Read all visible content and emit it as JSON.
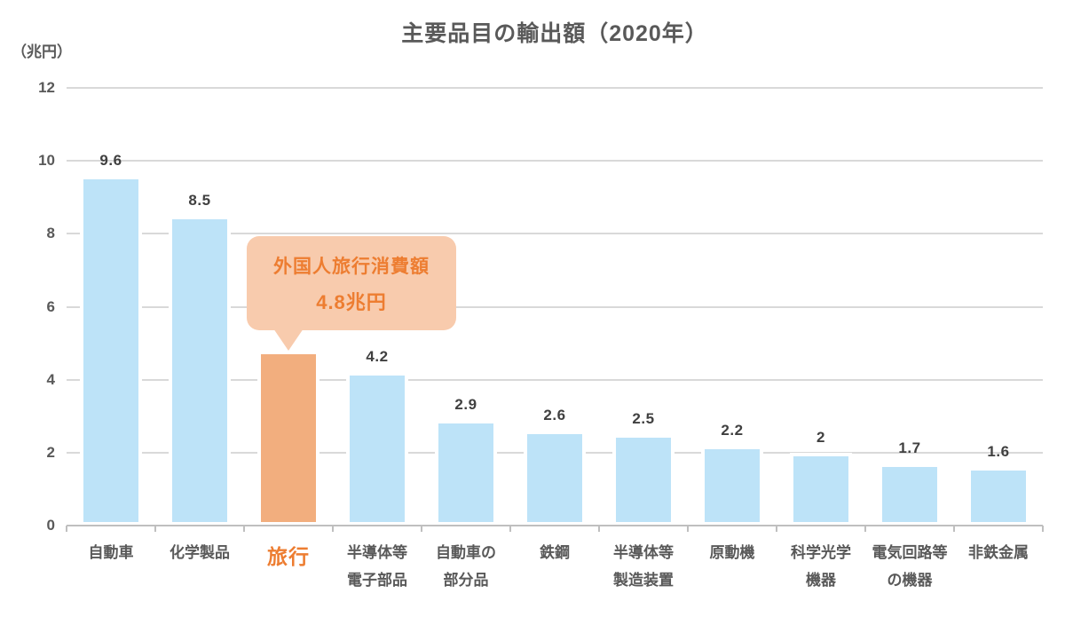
{
  "header": {
    "title": "主要品目の輸出額（2020年）",
    "unit_label": "（兆円）"
  },
  "chart_data": {
    "type": "bar",
    "title": "主要品目の輸出額（2020年）",
    "ylabel": "兆円",
    "ylim": [
      0,
      12
    ],
    "yticks": [
      0,
      2,
      4,
      6,
      8,
      10,
      12
    ],
    "grid": true,
    "legend": false,
    "categories": [
      "自動車",
      "化学製品",
      "旅行",
      "半導体等電子部品",
      "自動車の部分品",
      "鉄鋼",
      "半導体等製造装置",
      "原動機",
      "科学光学機器",
      "電気回路等の機器",
      "非鉄金属"
    ],
    "values": [
      9.6,
      8.5,
      4.8,
      4.2,
      2.9,
      2.6,
      2.5,
      2.2,
      2,
      1.7,
      1.6
    ],
    "bars": [
      {
        "label_lines": [
          "自動車"
        ],
        "value": 9.6,
        "value_label": "9.6",
        "highlight": false
      },
      {
        "label_lines": [
          "化学製品"
        ],
        "value": 8.5,
        "value_label": "8.5",
        "highlight": false
      },
      {
        "label_lines": [
          "旅行"
        ],
        "value": 4.8,
        "value_label": "",
        "highlight": true
      },
      {
        "label_lines": [
          "半導体等",
          "電子部品"
        ],
        "value": 4.2,
        "value_label": "4.2",
        "highlight": false
      },
      {
        "label_lines": [
          "自動車の",
          "部分品"
        ],
        "value": 2.9,
        "value_label": "2.9",
        "highlight": false
      },
      {
        "label_lines": [
          "鉄鋼"
        ],
        "value": 2.6,
        "value_label": "2.6",
        "highlight": false
      },
      {
        "label_lines": [
          "半導体等",
          "製造装置"
        ],
        "value": 2.5,
        "value_label": "2.5",
        "highlight": false
      },
      {
        "label_lines": [
          "原動機"
        ],
        "value": 2.2,
        "value_label": "2.2",
        "highlight": false
      },
      {
        "label_lines": [
          "科学光学",
          "機器"
        ],
        "value": 2,
        "value_label": "2",
        "highlight": false
      },
      {
        "label_lines": [
          "電気回路等",
          "の機器"
        ],
        "value": 1.7,
        "value_label": "1.7",
        "highlight": false
      },
      {
        "label_lines": [
          "非鉄金属"
        ],
        "value": 1.6,
        "value_label": "1.6",
        "highlight": false
      }
    ],
    "annotation": {
      "lines": [
        "外国人旅行消費額",
        "4.8兆円"
      ],
      "target_category": "旅行"
    },
    "colors": {
      "bar": "#BDE3F8",
      "bar_highlight": "#F2AE7E",
      "bar_border": "#FFFFFF",
      "annotation_bg": "#F8CBAD",
      "accent_text": "#ED7D31",
      "grid": "#D9D9D9",
      "axis": "#BFBFBF",
      "label_text": "#595959",
      "value_text": "#404040"
    }
  }
}
